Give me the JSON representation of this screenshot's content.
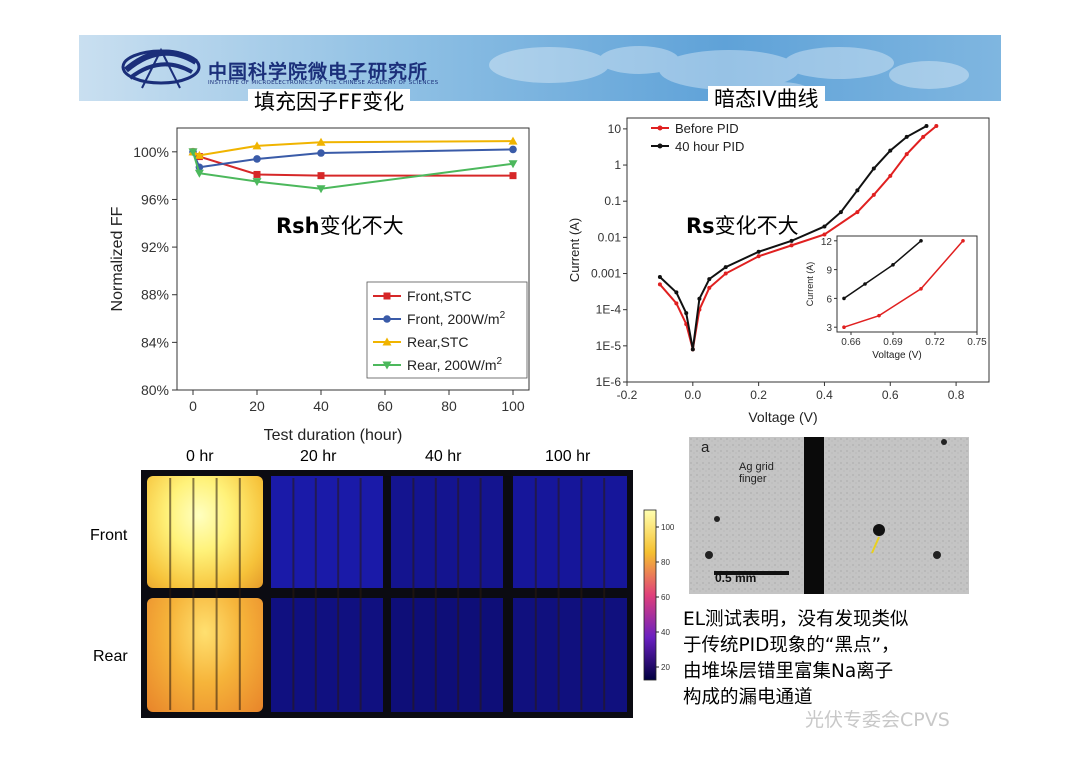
{
  "header": {
    "org_name": "中国科学院微电子研究所",
    "org_subtitle": "INSTITUTE OF MICROELECTRONICS OF THE CHINESE ACADEMY OF SCIENCES"
  },
  "headings": {
    "ff": "填充因子FF变化",
    "iv": "暗态IV曲线"
  },
  "notes": {
    "rsh_bold": "Rsh",
    "rsh_rest": "变化不大",
    "rs_bold": "Rs",
    "rs_rest": "变化不大"
  },
  "chart_data": [
    {
      "type": "line",
      "xlabel": "Test duration (hour)",
      "ylabel": "Normalized FF",
      "xlim": [
        -5,
        105
      ],
      "ylim": [
        80,
        102
      ],
      "xticks": [
        "0",
        "20",
        "40",
        "60",
        "80",
        "100"
      ],
      "yticks": [
        "80%",
        "84%",
        "88%",
        "92%",
        "96%",
        "100%"
      ],
      "legend_position": "bottom-right",
      "series": [
        {
          "name": "Front,STC",
          "color": "#d62728",
          "marker": "square",
          "x": [
            0,
            2,
            20,
            40,
            100
          ],
          "y": [
            100.0,
            99.6,
            98.1,
            98.0,
            98.0
          ]
        },
        {
          "name": "Front, 200W/m",
          "name_sup": "2",
          "color": "#3a5ba8",
          "marker": "circle",
          "x": [
            0,
            2,
            20,
            40,
            100
          ],
          "y": [
            100.0,
            98.7,
            99.4,
            99.9,
            100.2
          ]
        },
        {
          "name": "Rear,STC",
          "color": "#f0b400",
          "marker": "triangle-up",
          "x": [
            0,
            2,
            20,
            40,
            100
          ],
          "y": [
            100.0,
            99.7,
            100.5,
            100.8,
            100.9
          ]
        },
        {
          "name": "Rear, 200W/m",
          "name_sup": "2",
          "color": "#4cb85c",
          "marker": "triangle-down",
          "x": [
            0,
            2,
            20,
            40,
            100
          ],
          "y": [
            100.0,
            98.2,
            97.5,
            96.9,
            99.0
          ]
        }
      ]
    },
    {
      "type": "line",
      "xlabel": "Voltage (V)",
      "ylabel": "Current (A)",
      "yscale": "log",
      "xlim": [
        -0.2,
        0.9
      ],
      "ylim": [
        1e-06,
        20
      ],
      "xticks": [
        "-0.2",
        "0.0",
        "0.2",
        "0.4",
        "0.6",
        "0.8"
      ],
      "yticks": [
        "1E-6",
        "1E-5",
        "1E-4",
        "0.001",
        "0.01",
        "0.1",
        "1",
        "10"
      ],
      "legend_position": "top-left",
      "series": [
        {
          "name": "Before PID",
          "color": "#e02020",
          "x": [
            -0.1,
            -0.05,
            -0.02,
            0.0,
            0.02,
            0.05,
            0.1,
            0.2,
            0.3,
            0.4,
            0.5,
            0.55,
            0.6,
            0.65,
            0.7,
            0.74
          ],
          "y": [
            0.0005,
            0.00015,
            4e-05,
            8e-06,
            0.0001,
            0.0004,
            0.001,
            0.003,
            0.006,
            0.012,
            0.05,
            0.15,
            0.5,
            2,
            6,
            12
          ]
        },
        {
          "name": "40 hour PID",
          "color": "#111111",
          "x": [
            -0.1,
            -0.05,
            -0.02,
            0.0,
            0.02,
            0.05,
            0.1,
            0.2,
            0.3,
            0.4,
            0.45,
            0.5,
            0.55,
            0.6,
            0.65,
            0.71
          ],
          "y": [
            0.0008,
            0.0003,
            8e-05,
            8e-06,
            0.0002,
            0.0007,
            0.0015,
            0.004,
            0.008,
            0.02,
            0.05,
            0.2,
            0.8,
            2.5,
            6,
            12
          ]
        }
      ],
      "inset": {
        "xlabel": "Voltage (V)",
        "ylabel": "Current (A)",
        "xlim": [
          0.65,
          0.75
        ],
        "ylim": [
          2.5,
          12.5
        ],
        "xticks": [
          "0.66",
          "0.69",
          "0.72",
          "0.75"
        ],
        "yticks": [
          "3",
          "6",
          "9",
          "12"
        ],
        "series": [
          {
            "name": "40 hour PID",
            "color": "#111111",
            "x": [
              0.655,
              0.67,
              0.69,
              0.71
            ],
            "y": [
              6.0,
              7.5,
              9.5,
              12.0
            ]
          },
          {
            "name": "Before PID",
            "color": "#e02020",
            "x": [
              0.655,
              0.68,
              0.71,
              0.74
            ],
            "y": [
              3.0,
              4.2,
              7.0,
              12.0
            ]
          }
        ]
      }
    },
    {
      "type": "heatmap",
      "col_labels": [
        "0 hr",
        "20 hr",
        "40 hr",
        "100 hr"
      ],
      "row_labels": [
        "Front",
        "Rear"
      ],
      "colorbar_ticks": [
        "100",
        "80",
        "60",
        "40",
        "20"
      ]
    }
  ],
  "micrograph": {
    "panel_letter": "a",
    "label_line1": "Ag grid",
    "label_line2": "finger",
    "scale_bar": "0.5 mm"
  },
  "paragraph": {
    "l1": "EL测试表明，没有发现类似",
    "l2": "于传统PID现象的“黑点”，",
    "l3": "由堆垛层错里富集Na离子",
    "l4": "构成的漏电通道"
  },
  "watermark": "光伏专委会CPVS"
}
